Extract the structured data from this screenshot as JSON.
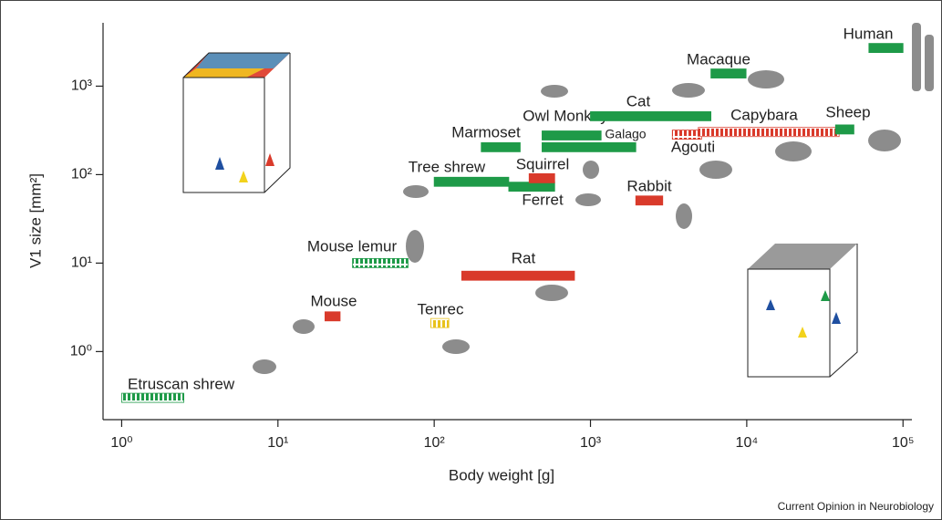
{
  "chart_data": {
    "type": "range",
    "x_label": "Body weight [g]",
    "y_label": "V1 size [mm²]",
    "source": "Current Opinion in Neurobiology",
    "xlog": true,
    "ylog": true,
    "xlim": [
      0.76,
      114000
    ],
    "ylim": [
      0.17,
      5200
    ],
    "xticks": [
      {
        "value": 1,
        "label": "10⁰"
      },
      {
        "value": 10,
        "label": "10¹"
      },
      {
        "value": 100,
        "label": "10²"
      },
      {
        "value": 1000,
        "label": "10³"
      },
      {
        "value": 10000,
        "label": "10⁴"
      },
      {
        "value": 100000,
        "label": "10⁵"
      }
    ],
    "yticks": [
      {
        "value": 1,
        "label": "10⁰"
      },
      {
        "value": 10,
        "label": "10¹"
      },
      {
        "value": 100,
        "label": "10²"
      },
      {
        "value": 1000,
        "label": "10³"
      }
    ],
    "series": [
      {
        "name": "Etruscan shrew",
        "x": [
          1.0,
          2.5
        ],
        "y": 0.3,
        "color": "#1e9a48",
        "hatched": true
      },
      {
        "name": "Mouse",
        "x": [
          20,
          25
        ],
        "y": 2.5,
        "color": "#d93a2b",
        "hatched": false
      },
      {
        "name": "Tenrec",
        "x": [
          95,
          124
        ],
        "y": 2.1,
        "color": "#e8c21c",
        "hatched": true
      },
      {
        "name": "Mouse lemur",
        "x": [
          30,
          68
        ],
        "y": 10,
        "color": "#1e9a48",
        "hatched": true
      },
      {
        "name": "Rat",
        "x": [
          150,
          790
        ],
        "y": 7.2,
        "color": "#d93a2b",
        "hatched": false
      },
      {
        "name": "Tree shrew",
        "x": [
          100,
          300
        ],
        "y": 83,
        "color": "#1e9a48",
        "hatched": false
      },
      {
        "name": "Ferret",
        "x": [
          300,
          590
        ],
        "y": 73,
        "color": "#1e9a48",
        "hatched": false
      },
      {
        "name": "Squirrel",
        "x": [
          405,
          590
        ],
        "y": 91,
        "color": "#d93a2b",
        "hatched": false
      },
      {
        "name": "Marmoset",
        "x": [
          200,
          355
        ],
        "y": 204,
        "color": "#1e9a48",
        "hatched": false
      },
      {
        "name": "Owl Monkey",
        "x": [
          490,
          1170
        ],
        "y": 277,
        "color": "#1e9a48",
        "hatched": false
      },
      {
        "name": "Galago",
        "x": [
          490,
          1950
        ],
        "y": 204,
        "color": "#1e9a48",
        "hatched": false
      },
      {
        "name": "Cat",
        "x": [
          1000,
          5900
        ],
        "y": 457,
        "color": "#1e9a48",
        "hatched": false
      },
      {
        "name": "Macaque",
        "x": [
          5900,
          9900
        ],
        "y": 1390,
        "color": "#1e9a48",
        "hatched": false
      },
      {
        "name": "Agouti",
        "x": [
          3340,
          5140
        ],
        "y": 283,
        "color": "#d93a2b",
        "hatched": true
      },
      {
        "name": "Capybara",
        "x": [
          4900,
          39000
        ],
        "y": 303,
        "color": "#d93a2b",
        "hatched": true
      },
      {
        "name": "Sheep",
        "x": [
          37000,
          48500
        ],
        "y": 324,
        "color": "#1e9a48",
        "hatched": false
      },
      {
        "name": "Rabbit",
        "x": [
          1950,
          2900
        ],
        "y": 51,
        "color": "#d93a2b",
        "hatched": false
      },
      {
        "name": "Human",
        "x": [
          60500,
          100000
        ],
        "y": 2700,
        "color": "#1e9a48",
        "hatched": false
      }
    ]
  }
}
